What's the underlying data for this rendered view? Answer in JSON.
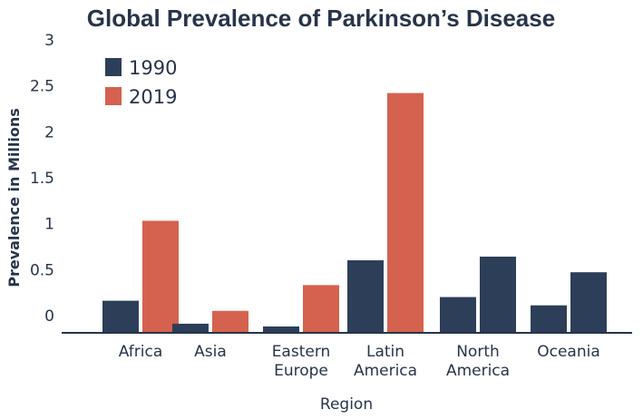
{
  "chart_data": {
    "type": "bar",
    "title": "Global Prevalence of Parkinson’s Disease",
    "xlabel": "Region",
    "ylabel": "Prevalence in Millions",
    "ylim": [
      0,
      3
    ],
    "yticks": [
      "0",
      "0.5",
      "1",
      "1.5",
      "2",
      "2.5",
      "3"
    ],
    "grid": false,
    "legend_position": "top-left",
    "categories": [
      [
        "Africa"
      ],
      [
        "Asia"
      ],
      [
        "Eastern",
        "Europe"
      ],
      [
        "Latin",
        "America"
      ],
      [
        "North",
        "America"
      ],
      [
        "Oceania"
      ]
    ],
    "series": [
      {
        "name": "1990",
        "color": "#2d3e58",
        "values": [
          0.3,
          0.05,
          0.02,
          0.74,
          0.34,
          0.25
        ]
      },
      {
        "name": "2019",
        "color": "#d4624e",
        "values": [
          1.17,
          0.19,
          0.47,
          2.56,
          0.78,
          0.61
        ]
      }
    ],
    "bar_colors_override": [
      [
        "#2d3e58",
        "#d4624e"
      ],
      [
        "#2d3e58",
        "#d4624e"
      ],
      [
        "#2d3e58",
        "#d4624e"
      ],
      [
        "#2d3e58",
        "#d4624e"
      ],
      [
        "#2d3e58",
        "#2d3e58"
      ],
      [
        "#2d3e58",
        "#2d3e58"
      ]
    ]
  }
}
